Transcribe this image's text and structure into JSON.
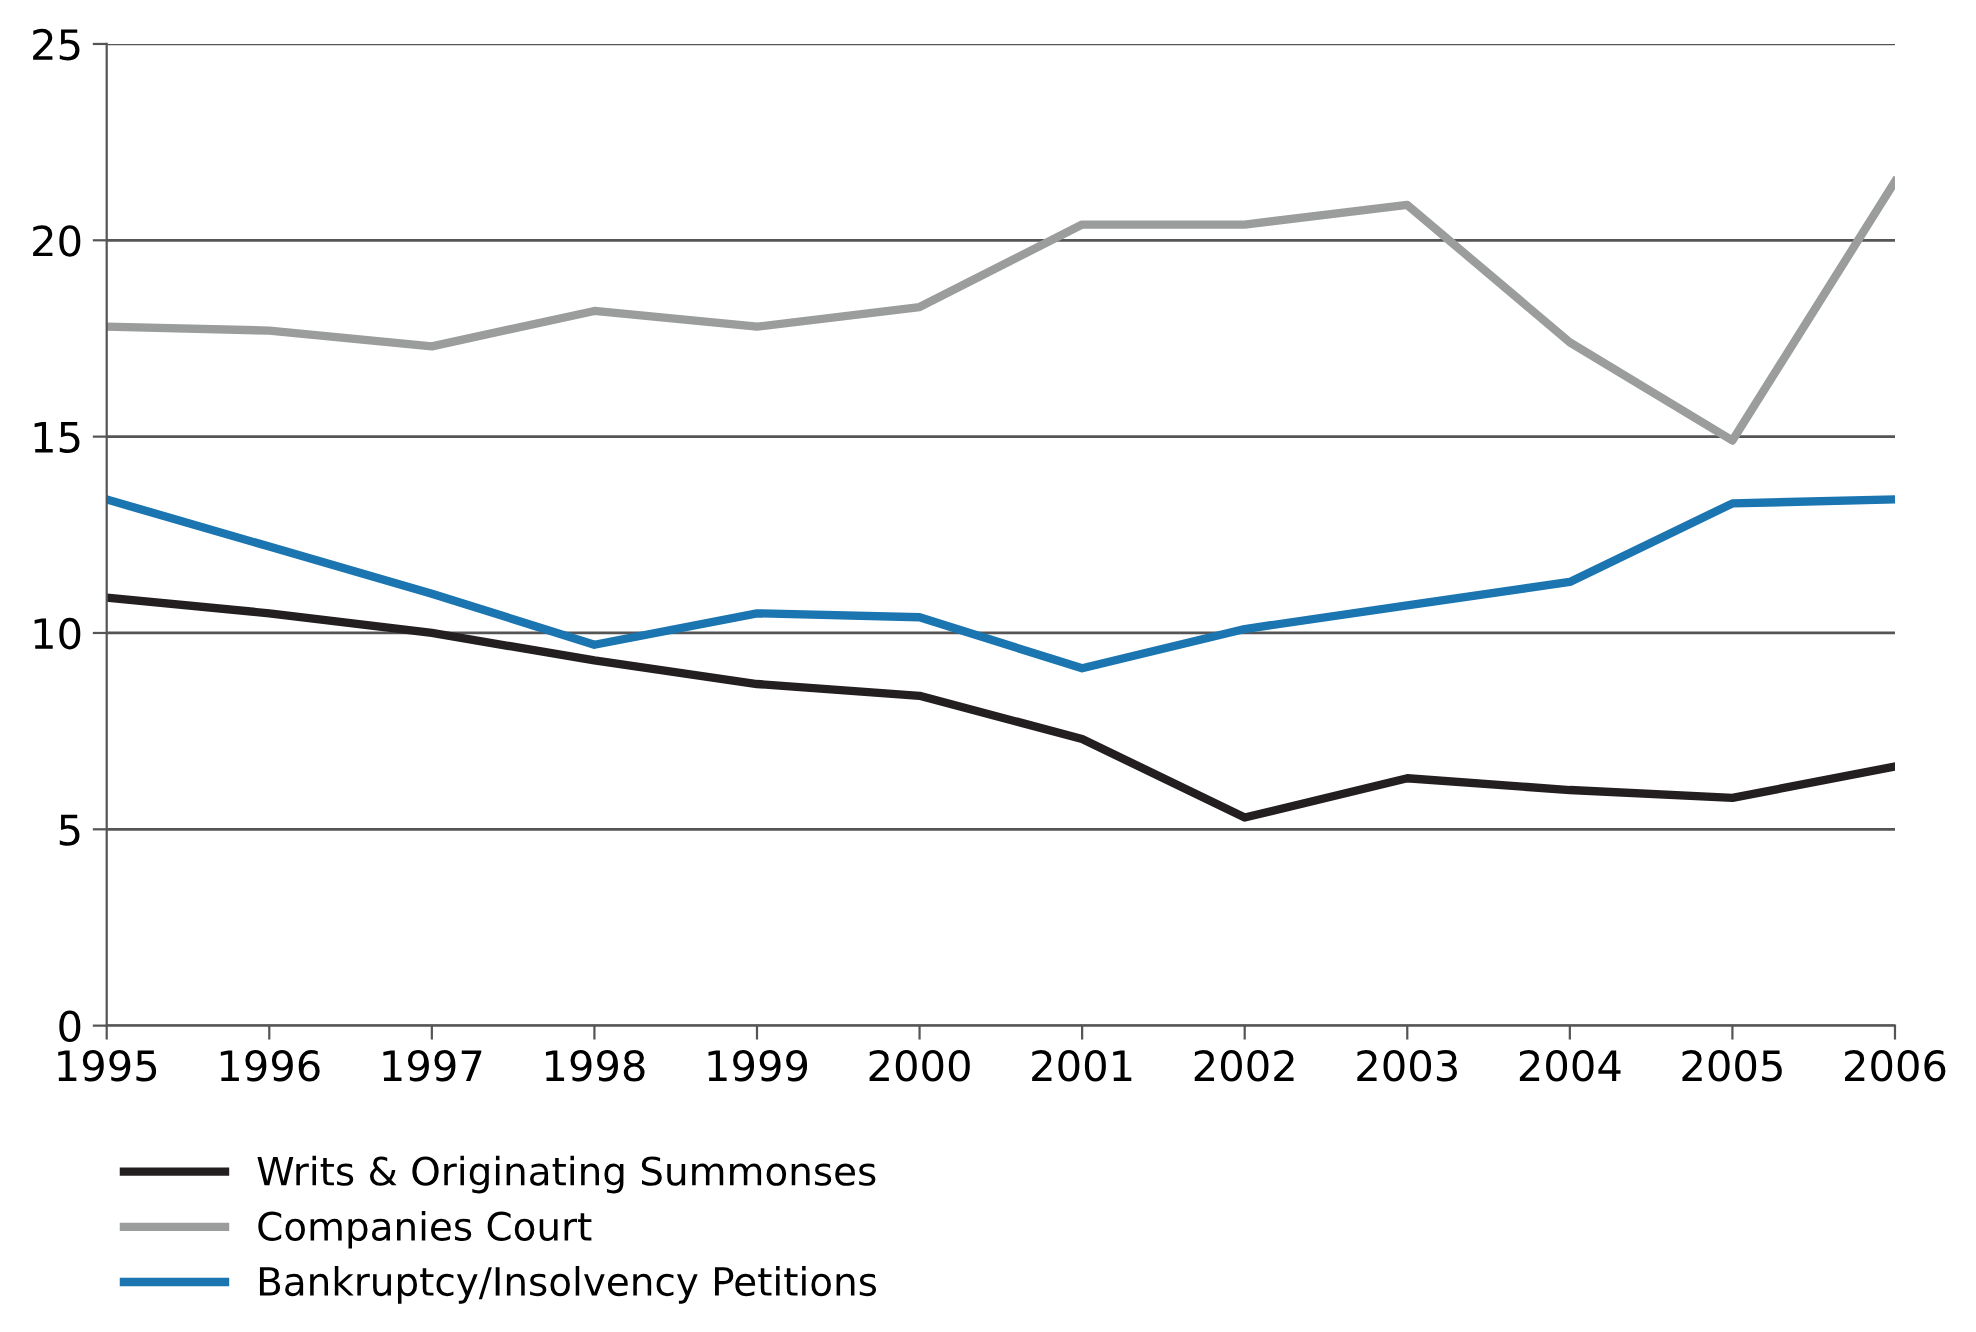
{
  "chart_data": {
    "type": "line",
    "x": [
      1995,
      1996,
      1997,
      1998,
      1999,
      2000,
      2001,
      2002,
      2003,
      2004,
      2005,
      2006
    ],
    "series": [
      {
        "name": "Writs & Originating Summonses",
        "color": "#231f20",
        "values": [
          10.9,
          10.5,
          10.0,
          9.3,
          8.7,
          8.4,
          7.3,
          5.3,
          6.3,
          6.0,
          5.8,
          6.6
        ]
      },
      {
        "name": "Companies Court",
        "color": "#9a9d9c",
        "values": [
          17.8,
          17.7,
          17.3,
          18.2,
          17.8,
          18.3,
          20.4,
          20.4,
          20.9,
          17.4,
          14.9,
          21.5
        ]
      },
      {
        "name": "Bankruptcy/Insolvency Petitions",
        "color": "#1a75b0",
        "values": [
          13.4,
          12.2,
          11.0,
          9.7,
          10.5,
          10.4,
          9.1,
          10.1,
          10.7,
          11.3,
          13.3,
          13.4
        ]
      }
    ],
    "xlim": [
      1995,
      2006
    ],
    "xticks": [
      1995,
      1996,
      1997,
      1998,
      1999,
      2000,
      2001,
      2002,
      2003,
      2004,
      2005,
      2006
    ],
    "ylim": [
      0,
      25
    ],
    "yticks": [
      0,
      5,
      10,
      15,
      20,
      25
    ],
    "grid": "y",
    "legend": "bottom",
    "line_style": "solid",
    "marker": "none"
  }
}
